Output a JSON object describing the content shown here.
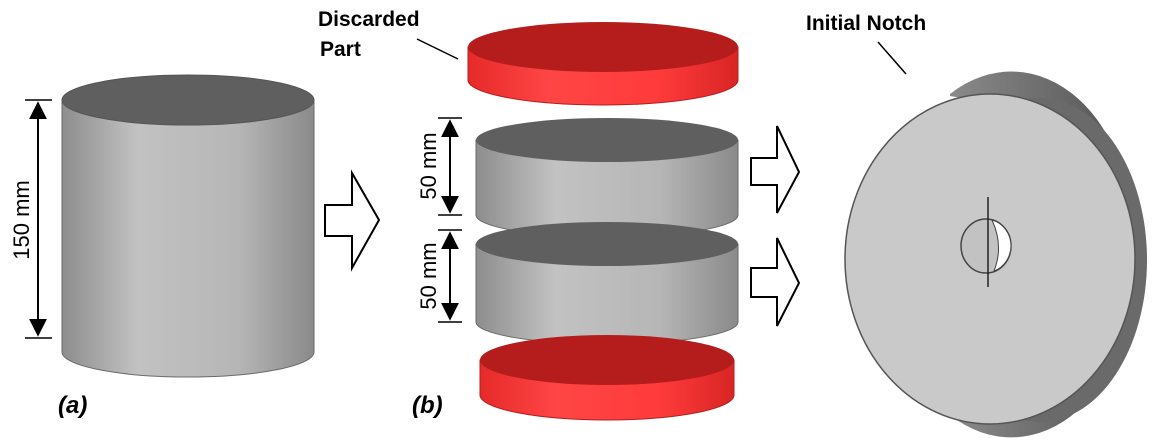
{
  "panel_a": {
    "label": "(a)",
    "height_label": "150 mm"
  },
  "panel_b": {
    "label": "(b)",
    "discarded_label_line1": "Discarded",
    "discarded_label_line2": "Part",
    "slice_top_label": "50 mm",
    "slice_bottom_label": "50 mm"
  },
  "panel_c": {
    "notch_label": "Initial Notch"
  },
  "colors": {
    "cylinder_side": "#b4b4b4",
    "cylinder_top": "#5f5f5f",
    "discarded_side": "#ff3a3a",
    "discarded_top": "#b51d1d",
    "disk_face": "#c9c9c9",
    "disk_rim": "#6e6e6e"
  }
}
